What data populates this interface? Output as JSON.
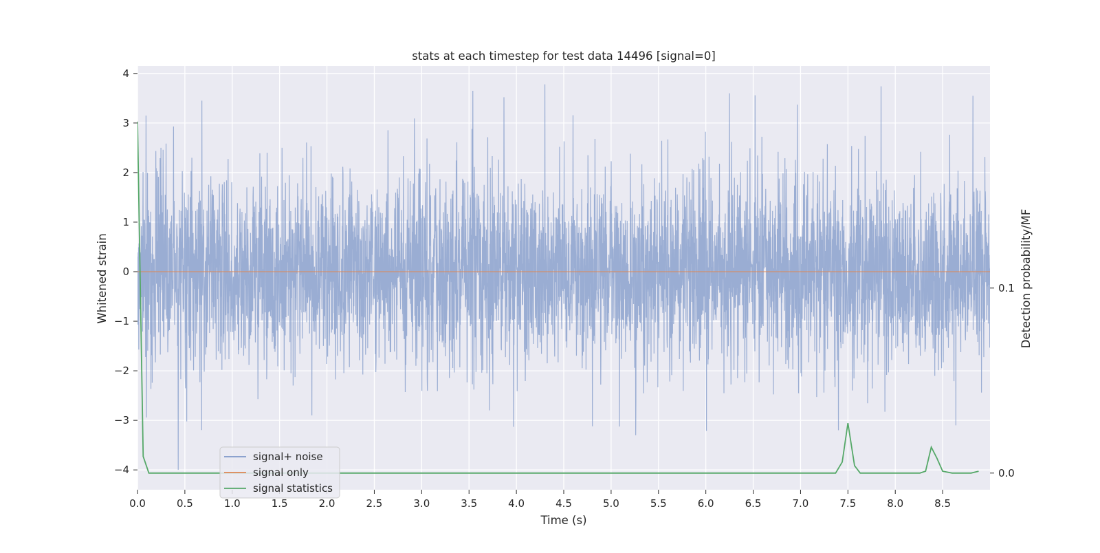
{
  "chart_data": {
    "type": "line",
    "title": "stats at each timestep for test data 14496 [signal=0]",
    "xlabel": "Time (s)",
    "ylabel": "Whitened strain",
    "y2label": "Detection probability/MF",
    "xlim": [
      0.0,
      9.0
    ],
    "ylim": [
      -4.4,
      4.15
    ],
    "y2lim": [
      -0.009,
      0.22
    ],
    "x_ticks": [
      "0.0",
      "0.5",
      "1.0",
      "1.5",
      "2.0",
      "2.5",
      "3.0",
      "3.5",
      "4.0",
      "4.5",
      "5.0",
      "5.5",
      "6.0",
      "6.5",
      "7.0",
      "7.5",
      "8.0",
      "8.5"
    ],
    "y_ticks": [
      "−4",
      "−3",
      "−2",
      "−1",
      "0",
      "1",
      "2",
      "3",
      "4"
    ],
    "y2_ticks": [
      "0.0",
      "0.1"
    ],
    "grid": true,
    "legend_position": "lower-left",
    "series": [
      {
        "name": "signal+ noise",
        "color": "#7f98c8",
        "kind": "noise",
        "description_samples": 8192,
        "envelope_typical": [
          -2.0,
          2.2
        ],
        "notable_peaks": [
          {
            "x": 0.09,
            "y": 3.15
          },
          {
            "x": 0.38,
            "y": 2.93
          },
          {
            "x": 0.68,
            "y": 3.45
          },
          {
            "x": 3.54,
            "y": 3.65
          },
          {
            "x": 4.3,
            "y": 3.78
          },
          {
            "x": 6.52,
            "y": 3.56
          },
          {
            "x": 7.85,
            "y": 3.74
          },
          {
            "x": 8.82,
            "y": 3.55
          }
        ],
        "notable_troughs": [
          {
            "x": 0.43,
            "y": -4.0
          },
          {
            "x": 1.84,
            "y": -2.9
          },
          {
            "x": 3.97,
            "y": -3.13
          },
          {
            "x": 5.26,
            "y": -3.3
          },
          {
            "x": 7.4,
            "y": -3.2
          },
          {
            "x": 8.64,
            "y": -3.1
          }
        ]
      },
      {
        "name": "signal only",
        "color": "#dd8452",
        "x": [
          0.0,
          9.0
        ],
        "y": [
          0.0,
          0.0
        ]
      },
      {
        "name": "signal statistics",
        "color": "#55a868",
        "axis": "right",
        "x": [
          0.0,
          0.06,
          0.12,
          1.0,
          2.0,
          3.0,
          4.0,
          5.0,
          6.0,
          7.0,
          7.37,
          7.44,
          7.5,
          7.57,
          7.63,
          7.7,
          8.0,
          8.26,
          8.32,
          8.38,
          8.44,
          8.5,
          8.6,
          8.8,
          8.88
        ],
        "y": [
          0.19,
          0.009,
          0.0,
          0.0,
          0.0,
          0.0,
          0.0,
          0.0,
          0.0,
          0.0,
          0.0,
          0.006,
          0.027,
          0.004,
          0.0,
          0.0,
          0.0,
          0.0,
          0.001,
          0.014,
          0.008,
          0.001,
          0.0,
          0.0,
          0.001
        ]
      }
    ]
  },
  "style": {
    "background": "#eaeaf2",
    "grid_color": "#ffffff"
  }
}
